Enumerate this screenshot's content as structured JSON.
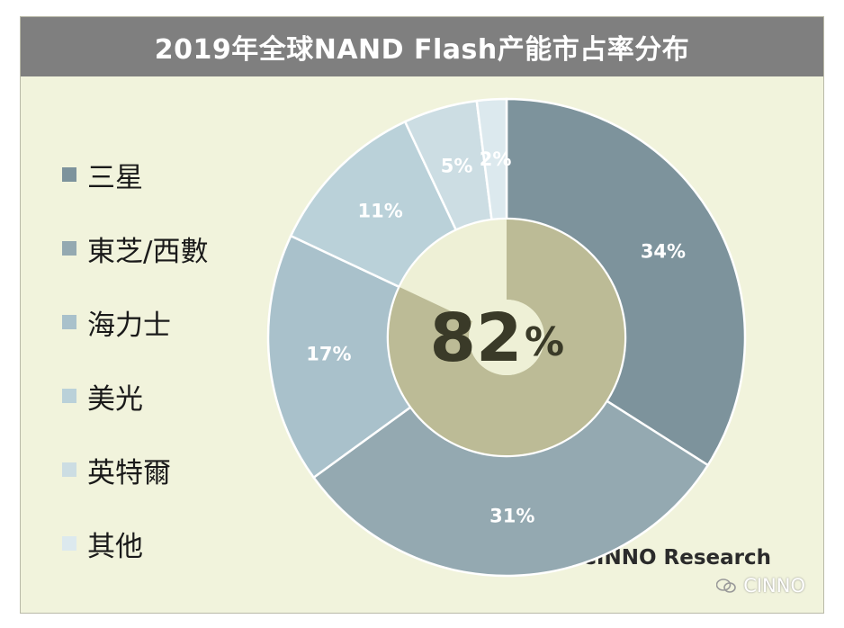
{
  "title": "2019年全球NAND Flash产能市占率分布",
  "copyright": "Copyright © CINNO Research",
  "watermark": "CINNO",
  "chart_data": {
    "type": "pie",
    "subtype": "donut",
    "categories": [
      "三星",
      "東芝/西數",
      "海力士",
      "美光",
      "英特爾",
      "其他"
    ],
    "values": [
      34,
      31,
      17,
      11,
      5,
      2
    ],
    "value_labels": [
      "34%",
      "31%",
      "17%",
      "11%",
      "5%",
      "2%"
    ],
    "colors": [
      "#7d939c",
      "#94a9b1",
      "#a9c1cb",
      "#bad1d9",
      "#ccdde3",
      "#dce9ee"
    ],
    "inner_ring": {
      "value": 82,
      "label_number": "82",
      "label_unit": "%",
      "fill": "#bcbb96",
      "background": "#eef0d6"
    },
    "legend": "left",
    "label_color": "#ffffff"
  }
}
